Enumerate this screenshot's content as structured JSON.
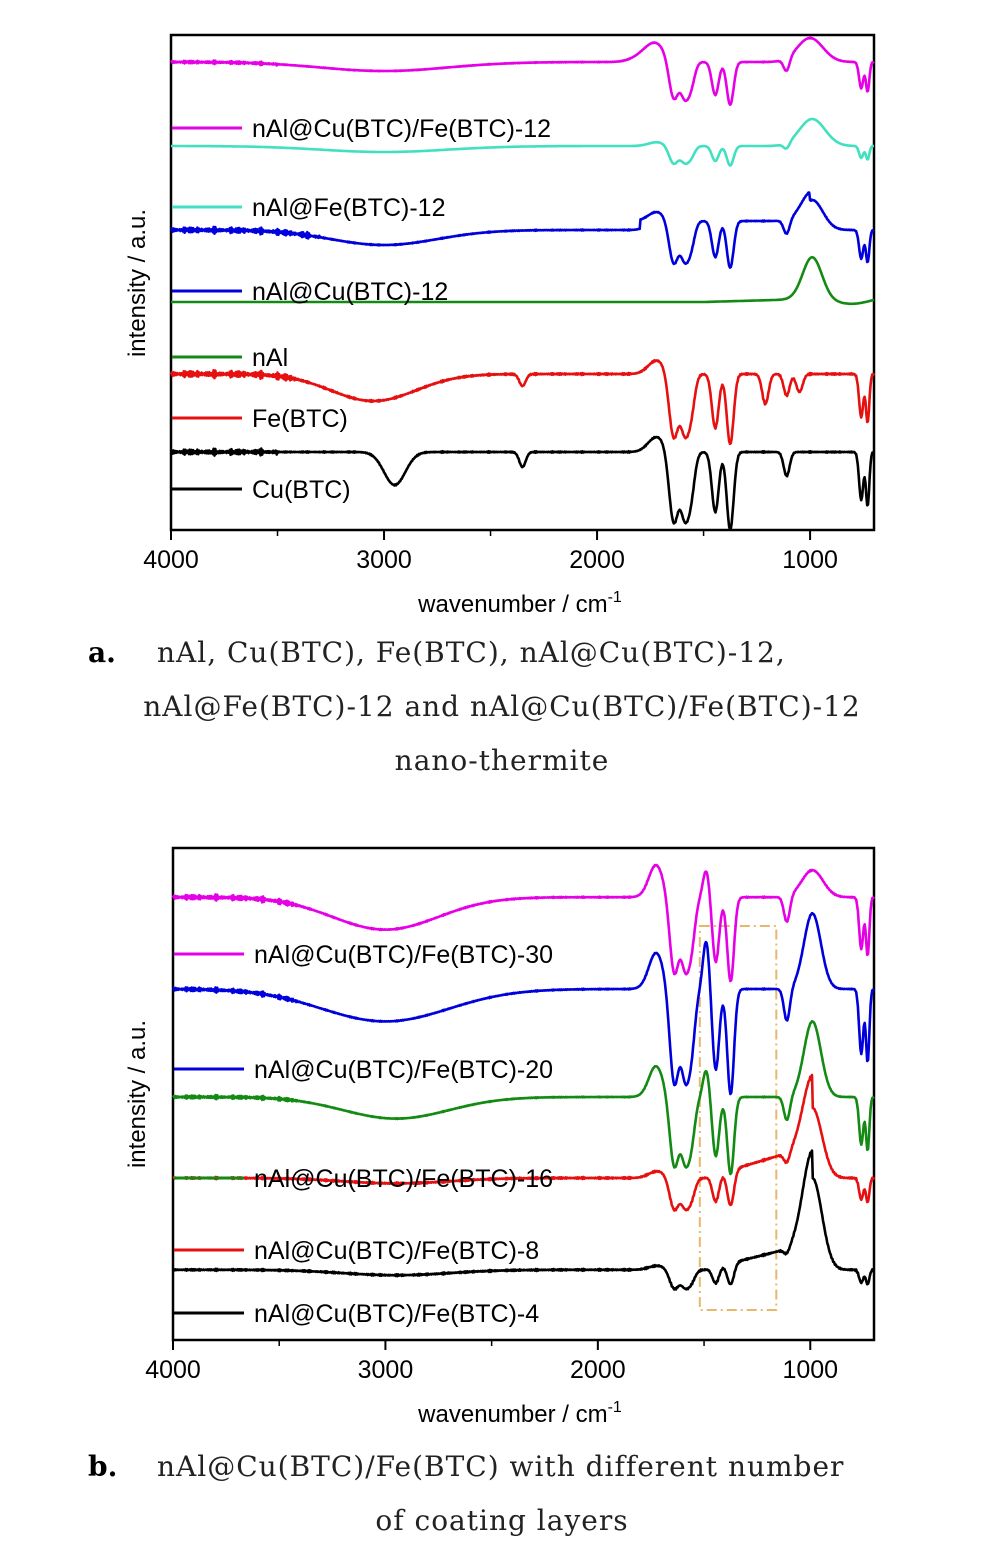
{
  "chart_data": [
    {
      "type": "line",
      "panel": "a",
      "xlabel": "wavenumber / cm",
      "xlabel_sup": "-1",
      "ylabel": "intensity / a.u.",
      "xlim": [
        4000,
        700
      ],
      "x_reversed": true,
      "xticks": [
        4000,
        3000,
        2000,
        1000
      ],
      "yticks": false,
      "caption": {
        "marker": "a.",
        "lines": [
          "nAl, Cu(BTC), Fe(BTC), nAl@Cu(BTC)-12,",
          "nAl@Fe(BTC)-12 and nAl@Cu(BTC)/Fe(BTC)-12",
          "nano-thermite"
        ]
      },
      "series": [
        {
          "name": "nAl@Cu(BTC)/Fe(BTC)-12",
          "color": "#e600e6",
          "offset": 7.8,
          "profile": "mof_both_weak"
        },
        {
          "name": "nAl@Fe(BTC)-12",
          "color": "#40e0c0",
          "offset": 6.4,
          "profile": "fe_weak"
        },
        {
          "name": "nAl@Cu(BTC)-12",
          "color": "#0000dd",
          "offset": 5.0,
          "profile": "cu_mid"
        },
        {
          "name": "nAl",
          "color": "#138a13",
          "offset": 3.8,
          "profile": "al_only"
        },
        {
          "name": "Fe(BTC)",
          "color": "#e61010",
          "offset": 2.6,
          "profile": "fe_strong"
        },
        {
          "name": "Cu(BTC)",
          "color": "#000000",
          "offset": 1.3,
          "profile": "cu_strong"
        }
      ]
    },
    {
      "type": "line",
      "panel": "b",
      "xlabel": "wavenumber / cm",
      "xlabel_sup": "-1",
      "ylabel": "intensity / a.u.",
      "xlim": [
        4000,
        700
      ],
      "x_reversed": true,
      "xticks": [
        4000,
        3000,
        2000,
        1000
      ],
      "yticks": false,
      "highlight_box": {
        "x": [
          1520,
          1160
        ],
        "style": "dash-dot",
        "color": "#e8b86a"
      },
      "caption": {
        "marker": "b.",
        "lines": [
          "nAl@Cu(BTC)/Fe(BTC) with different number",
          "of coating layers"
        ]
      },
      "series": [
        {
          "name": "nAl@Cu(BTC)/Fe(BTC)-30",
          "color": "#e600e6",
          "offset": 8.2,
          "profile": "layers_30"
        },
        {
          "name": "nAl@Cu(BTC)/Fe(BTC)-20",
          "color": "#0000dd",
          "offset": 6.5,
          "profile": "layers_20"
        },
        {
          "name": "nAl@Cu(BTC)/Fe(BTC)-16",
          "color": "#138a13",
          "offset": 4.5,
          "profile": "layers_16"
        },
        {
          "name": "nAl@Cu(BTC)/Fe(BTC)-8",
          "color": "#e61010",
          "offset": 3.0,
          "profile": "layers_8"
        },
        {
          "name": "nAl@Cu(BTC)/Fe(BTC)-4",
          "color": "#000000",
          "offset": 1.3,
          "profile": "layers_4"
        }
      ]
    }
  ]
}
